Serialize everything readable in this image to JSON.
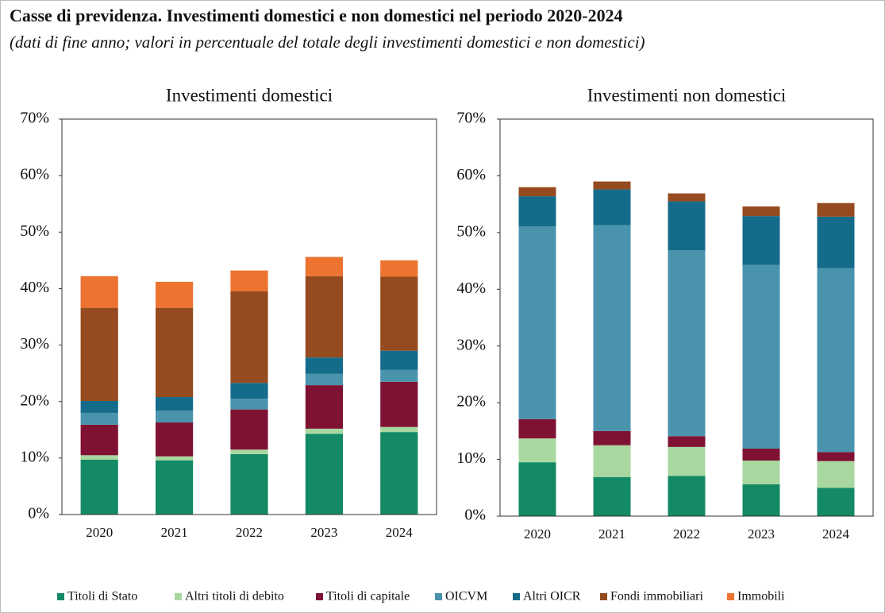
{
  "header": {
    "title": "Casse di previdenza. Investimenti domestici e non domestici nel periodo 2020-2024",
    "subtitle": "(dati di fine anno; valori in percentuale del totale degli investimenti domestici e non domestici)"
  },
  "chart_data": [
    {
      "type": "bar",
      "stacked": true,
      "title": "Investimenti domestici",
      "categories": [
        "2020",
        "2021",
        "2022",
        "2023",
        "2024"
      ],
      "ylim": [
        0,
        70
      ],
      "yticks": [
        {
          "value": 0,
          "label": "0%"
        },
        {
          "value": 10,
          "label": "10%"
        },
        {
          "value": 20,
          "label": "20%"
        },
        {
          "value": 30,
          "label": "30%"
        },
        {
          "value": 40,
          "label": "40%"
        },
        {
          "value": 50,
          "label": "50%"
        },
        {
          "value": 60,
          "label": "60%"
        },
        {
          "value": 70,
          "label": "70%"
        }
      ],
      "series": [
        {
          "name": "Titoli di Stato",
          "color": "#138a65",
          "values": [
            9.7,
            9.6,
            10.7,
            14.3,
            14.6
          ]
        },
        {
          "name": "Altri titoli di debito",
          "color": "#a8d8a0",
          "values": [
            0.8,
            0.7,
            0.8,
            0.9,
            0.9
          ]
        },
        {
          "name": "Titoli di capitale",
          "color": "#7f1233",
          "values": [
            5.4,
            6.0,
            7.1,
            7.7,
            8.0
          ]
        },
        {
          "name": "OICVM",
          "color": "#4a93ad",
          "values": [
            2.1,
            2.1,
            1.9,
            2.0,
            2.1
          ]
        },
        {
          "name": "Altri OICR",
          "color": "#146b8a",
          "values": [
            2.1,
            2.4,
            2.8,
            2.9,
            3.4
          ]
        },
        {
          "name": "Fondi immobiliari",
          "color": "#954b1f",
          "values": [
            16.5,
            15.8,
            16.2,
            14.4,
            13.1
          ]
        },
        {
          "name": "Immobili",
          "color": "#ec7330",
          "values": [
            5.6,
            4.6,
            3.7,
            3.4,
            2.9
          ]
        }
      ]
    },
    {
      "type": "bar",
      "stacked": true,
      "title": "Investimenti non domestici",
      "categories": [
        "2020",
        "2021",
        "2022",
        "2023",
        "2024"
      ],
      "ylim": [
        0,
        70
      ],
      "yticks": [
        {
          "value": 0,
          "label": "0%"
        },
        {
          "value": 10,
          "label": "10%"
        },
        {
          "value": 20,
          "label": "20%"
        },
        {
          "value": 30,
          "label": "30%"
        },
        {
          "value": 40,
          "label": "40%"
        },
        {
          "value": 50,
          "label": "50%"
        },
        {
          "value": 60,
          "label": "60%"
        },
        {
          "value": 70,
          "label": "70%"
        }
      ],
      "series": [
        {
          "name": "Titoli di Stato",
          "color": "#138a65",
          "values": [
            9.5,
            6.9,
            7.1,
            5.6,
            5.0
          ]
        },
        {
          "name": "Altri titoli di debito",
          "color": "#a8d8a0",
          "values": [
            4.2,
            5.6,
            5.1,
            4.2,
            4.7
          ]
        },
        {
          "name": "Titoli di capitale",
          "color": "#7f1233",
          "values": [
            3.4,
            2.5,
            1.9,
            2.1,
            1.6
          ]
        },
        {
          "name": "OICVM",
          "color": "#4a93ad",
          "values": [
            34.0,
            36.3,
            32.8,
            32.4,
            32.4
          ]
        },
        {
          "name": "Altri OICR",
          "color": "#146b8a",
          "values": [
            5.3,
            6.3,
            8.6,
            8.6,
            9.1
          ]
        },
        {
          "name": "Fondi immobiliari",
          "color": "#954b1f",
          "values": [
            1.6,
            1.4,
            1.4,
            1.7,
            2.4
          ]
        },
        {
          "name": "Immobili",
          "color": "#ec7330",
          "values": [
            0,
            0,
            0,
            0,
            0
          ]
        }
      ]
    }
  ]
}
